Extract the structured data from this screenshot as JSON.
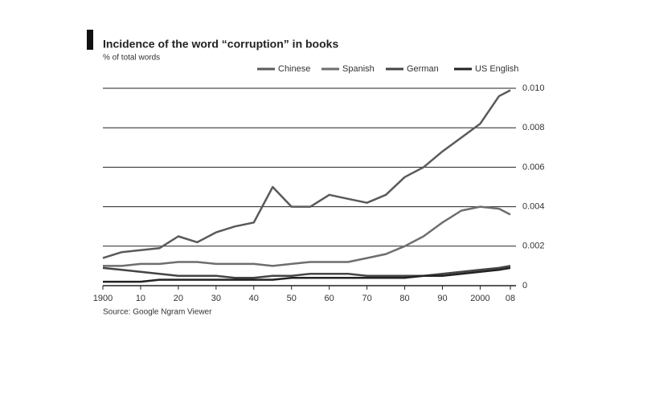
{
  "chart_data": {
    "type": "line",
    "title": "Incidence of the word “corruption” in books",
    "subtitle": "% of total words",
    "source": "Source: Google Ngram Viewer",
    "x": [
      1900,
      1905,
      1910,
      1915,
      1920,
      1925,
      1930,
      1935,
      1940,
      1945,
      1950,
      1955,
      1960,
      1965,
      1970,
      1975,
      1980,
      1985,
      1990,
      1995,
      2000,
      2005,
      2008
    ],
    "series": [
      {
        "name": "Chinese",
        "color": "#5a5a5a",
        "values": [
          0.0014,
          0.0017,
          0.0018,
          0.0019,
          0.0025,
          0.0022,
          0.0027,
          0.003,
          0.0032,
          0.005,
          0.004,
          0.004,
          0.0046,
          0.0044,
          0.0042,
          0.0046,
          0.0055,
          0.006,
          0.0068,
          0.0075,
          0.0082,
          0.0096,
          0.0099
        ]
      },
      {
        "name": "Spanish",
        "color": "#6e6e6e",
        "values": [
          0.001,
          0.001,
          0.0011,
          0.0011,
          0.0012,
          0.0012,
          0.0011,
          0.0011,
          0.0011,
          0.001,
          0.0011,
          0.0012,
          0.0012,
          0.0012,
          0.0014,
          0.0016,
          0.002,
          0.0025,
          0.0032,
          0.0038,
          0.004,
          0.0039,
          0.0036
        ]
      },
      {
        "name": "German",
        "color": "#444444",
        "values": [
          0.0009,
          0.0008,
          0.0007,
          0.0006,
          0.0005,
          0.0005,
          0.0005,
          0.0004,
          0.0004,
          0.0005,
          0.0005,
          0.0006,
          0.0006,
          0.0006,
          0.0005,
          0.0005,
          0.0005,
          0.0005,
          0.0006,
          0.0007,
          0.0008,
          0.0009,
          0.001
        ]
      },
      {
        "name": "US English",
        "color": "#222222",
        "values": [
          0.0002,
          0.0002,
          0.0002,
          0.0003,
          0.0003,
          0.0003,
          0.0003,
          0.0003,
          0.0003,
          0.0003,
          0.0004,
          0.0004,
          0.0004,
          0.0004,
          0.0004,
          0.0004,
          0.0004,
          0.0005,
          0.0005,
          0.0006,
          0.0007,
          0.0008,
          0.0009
        ]
      }
    ],
    "xlim": [
      1900,
      2008
    ],
    "xticks": [
      1900,
      {
        "value": 1910,
        "label": "10"
      },
      {
        "value": 1920,
        "label": "20"
      },
      {
        "value": 1930,
        "label": "30"
      },
      {
        "value": 1940,
        "label": "40"
      },
      {
        "value": 1950,
        "label": "50"
      },
      {
        "value": 1960,
        "label": "60"
      },
      {
        "value": 1970,
        "label": "70"
      },
      {
        "value": 1980,
        "label": "80"
      },
      {
        "value": 1990,
        "label": "90"
      },
      2000,
      {
        "value": 2008,
        "label": "08"
      }
    ],
    "ylim": [
      0,
      0.01
    ],
    "yticks": [
      0,
      0.002,
      0.004,
      0.006,
      0.008,
      {
        "value": 0.01,
        "label": "0.010"
      }
    ],
    "grid": true
  }
}
